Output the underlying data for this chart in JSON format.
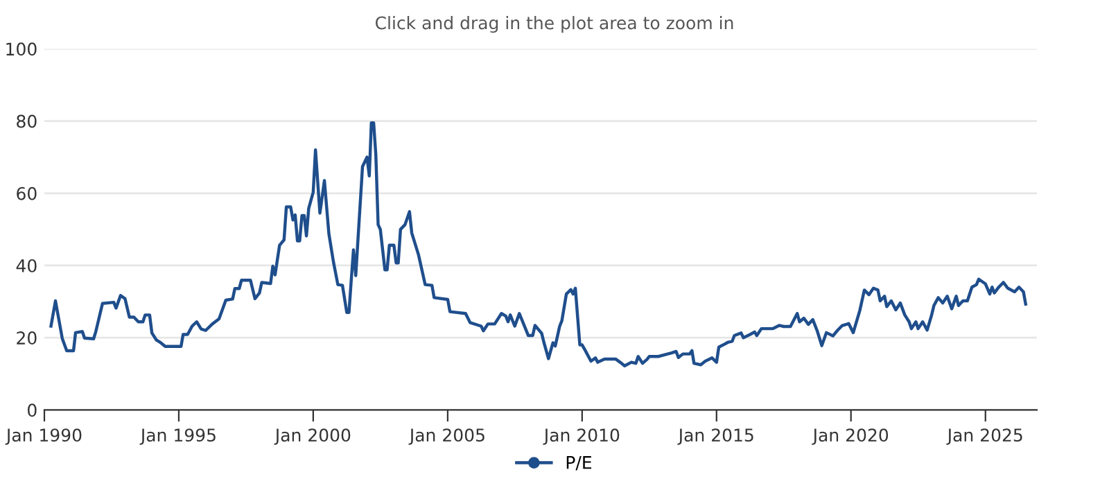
{
  "chart_data": {
    "type": "line",
    "subtitle": "Click and drag in the plot area to zoom in",
    "x": [
      "1990-04",
      "1990-06",
      "1990-09",
      "1990-11",
      "1991-02",
      "1991-03",
      "1991-06",
      "1991-07",
      "1991-11",
      "1991-12",
      "1992-03",
      "1992-08",
      "1992-09",
      "1992-11",
      "1993-01",
      "1993-03",
      "1993-05",
      "1993-07",
      "1993-09",
      "1993-10",
      "1993-12",
      "1994-01",
      "1994-03",
      "1994-05",
      "1994-07",
      "1995-02",
      "1995-03",
      "1995-05",
      "1995-07",
      "1995-09",
      "1995-11",
      "1996-01",
      "1996-04",
      "1996-07",
      "1996-10",
      "1997-01",
      "1997-02",
      "1997-04",
      "1997-05",
      "1997-09",
      "1997-11",
      "1998-01",
      "1998-02",
      "1998-06",
      "1998-07",
      "1998-08",
      "1998-10",
      "1998-12",
      "1999-01",
      "1999-03",
      "1999-04",
      "1999-05",
      "1999-06",
      "1999-07",
      "1999-08",
      "1999-09",
      "1999-10",
      "1999-11",
      "2000-01",
      "2000-02",
      "2000-04",
      "2000-06",
      "2000-08",
      "2000-10",
      "2000-12",
      "2001-02",
      "2001-04",
      "2001-05",
      "2001-06",
      "2001-07",
      "2001-08",
      "2001-09",
      "2001-11",
      "2002-01",
      "2002-02",
      "2002-03",
      "2002-04",
      "2002-05",
      "2002-06",
      "2002-07",
      "2002-09",
      "2002-10",
      "2002-11",
      "2003-01",
      "2003-02",
      "2003-03",
      "2003-04",
      "2003-06",
      "2003-08",
      "2003-09",
      "2003-12",
      "2004-03",
      "2004-06",
      "2004-07",
      "2005-01",
      "2005-02",
      "2005-09",
      "2005-11",
      "2006-04",
      "2006-05",
      "2006-07",
      "2006-10",
      "2007-01",
      "2007-03",
      "2007-04",
      "2007-05",
      "2007-07",
      "2007-09",
      "2008-01",
      "2008-03",
      "2008-04",
      "2008-07",
      "2008-08",
      "2008-10",
      "2008-12",
      "2009-01",
      "2009-03",
      "2009-04",
      "2009-06",
      "2009-08",
      "2009-09",
      "2009-10",
      "2009-12",
      "2010-01",
      "2010-02",
      "2010-05",
      "2010-07",
      "2010-08",
      "2010-11",
      "2011-04",
      "2011-06",
      "2011-08",
      "2011-11",
      "2012-01",
      "2012-02",
      "2012-04",
      "2012-06",
      "2012-07",
      "2012-11",
      "2013-02",
      "2013-05",
      "2013-07",
      "2013-08",
      "2013-10",
      "2014-01",
      "2014-02",
      "2014-03",
      "2014-06",
      "2014-08",
      "2014-11",
      "2015-01",
      "2015-02",
      "2015-04",
      "2015-06",
      "2015-08",
      "2015-09",
      "2015-12",
      "2016-01",
      "2016-04",
      "2016-06",
      "2016-07",
      "2016-09",
      "2017-02",
      "2017-05",
      "2017-07",
      "2017-10",
      "2018-01",
      "2018-02",
      "2018-04",
      "2018-06",
      "2018-08",
      "2018-10",
      "2018-12",
      "2019-02",
      "2019-05",
      "2019-07",
      "2019-09",
      "2019-12",
      "2020-02",
      "2020-05",
      "2020-07",
      "2020-09",
      "2020-11",
      "2021-01",
      "2021-02",
      "2021-04",
      "2021-05",
      "2021-07",
      "2021-09",
      "2021-11",
      "2022-01",
      "2022-03",
      "2022-04",
      "2022-06",
      "2022-07",
      "2022-09",
      "2022-11",
      "2023-01",
      "2023-02",
      "2023-04",
      "2023-06",
      "2023-08",
      "2023-10",
      "2023-12",
      "2024-01",
      "2024-03",
      "2024-05",
      "2024-07",
      "2024-09",
      "2024-10",
      "2025-01",
      "2025-03",
      "2025-04",
      "2025-05",
      "2025-07",
      "2025-09",
      "2025-11",
      "2026-02",
      "2026-04",
      "2026-06",
      "2026-07"
    ],
    "series": [
      {
        "name": "P/E",
        "color": "#1f4e8c",
        "values": [
          23.2,
          30.2,
          19.8,
          16.4,
          16.4,
          21.4,
          21.7,
          19.9,
          19.7,
          21.7,
          29.5,
          29.8,
          28.2,
          31.7,
          30.8,
          25.7,
          25.7,
          24.4,
          24.4,
          26.3,
          26.3,
          21.3,
          19.4,
          18.6,
          17.6,
          17.6,
          20.9,
          20.9,
          23.2,
          24.4,
          22.4,
          22.0,
          23.8,
          25.2,
          30.4,
          30.7,
          33.6,
          33.6,
          35.9,
          35.9,
          30.8,
          32.4,
          35.3,
          35.0,
          39.8,
          37.4,
          45.6,
          47.1,
          56.2,
          56.2,
          52.6,
          54.0,
          46.8,
          46.8,
          53.8,
          53.8,
          48.2,
          55.8,
          60.3,
          72,
          54.5,
          63.5,
          48.8,
          41.1,
          34.7,
          34.5,
          27,
          27,
          36,
          44.3,
          37.2,
          47.5,
          67.4,
          70,
          64.8,
          79.5,
          79.5,
          70.6,
          51.3,
          50,
          38.8,
          38.8,
          45.6,
          45.6,
          40.7,
          40.7,
          50,
          51.3,
          54.9,
          49,
          43,
          34.7,
          34.5,
          31.1,
          30.6,
          27.2,
          26.7,
          24.2,
          23.2,
          21.9,
          23.8,
          23.8,
          26.7,
          26,
          24.4,
          26.3,
          23.2,
          26.7,
          20.6,
          20.6,
          23.4,
          21.2,
          18.6,
          14.2,
          18.6,
          17.7,
          23.1,
          24.7,
          32.1,
          33.3,
          32.1,
          33.7,
          18,
          18,
          16.9,
          13.5,
          14.4,
          13.2,
          14.1,
          14.1,
          13.2,
          12.2,
          13.2,
          12.9,
          14.8,
          12.9,
          14,
          14.8,
          14.8,
          15.3,
          15.8,
          16.2,
          14.5,
          15.5,
          15.5,
          16.4,
          12.9,
          12.5,
          13.5,
          14.4,
          13.2,
          17.4,
          18,
          18.7,
          19,
          20.6,
          21.3,
          20,
          20.9,
          21.6,
          20.6,
          22.5,
          22.5,
          23.4,
          23.1,
          23.1,
          26.7,
          24.4,
          25.4,
          23.7,
          25,
          21.8,
          17.8,
          21.4,
          20.5,
          22,
          23.3,
          23.9,
          21.4,
          27.6,
          33.2,
          31.9,
          33.7,
          33.2,
          30.2,
          31.5,
          28.6,
          30.2,
          27.7,
          29.6,
          26.3,
          24.4,
          22.5,
          24.4,
          22.5,
          24.4,
          22.1,
          26.3,
          28.9,
          31.1,
          29.6,
          31.5,
          28,
          31.5,
          28.9,
          30.2,
          30.2,
          34,
          34.7,
          36.2,
          34.9,
          32.1,
          34,
          32.4,
          34,
          35.3,
          33.7,
          32.7,
          34,
          32.7,
          29.3
        ]
      }
    ],
    "xlim": [
      "1990-01",
      "2026-12"
    ],
    "xticks": [
      {
        "value": "1990-01",
        "label": "Jan 1990"
      },
      {
        "value": "1995-01",
        "label": "Jan 1995"
      },
      {
        "value": "2000-01",
        "label": "Jan 2000"
      },
      {
        "value": "2005-01",
        "label": "Jan 2005"
      },
      {
        "value": "2010-01",
        "label": "Jan 2010"
      },
      {
        "value": "2015-01",
        "label": "Jan 2015"
      },
      {
        "value": "2020-01",
        "label": "Jan 2020"
      },
      {
        "value": "2025-01",
        "label": "Jan 2025"
      }
    ],
    "ylim": [
      0,
      100
    ],
    "yticks": [
      0,
      20,
      40,
      60,
      80,
      100
    ],
    "grid": "y",
    "legend": "bottom"
  }
}
